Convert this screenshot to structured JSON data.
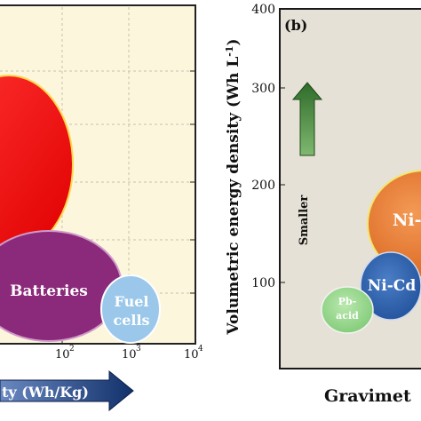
{
  "chart_data": [
    {
      "type": "scatter",
      "title": "",
      "xlabel": "ty (Wh/Kg)",
      "ylabel": "",
      "xscale": "log",
      "x_ticks": [
        "10²",
        "10³",
        "10⁴"
      ],
      "x_tick_values": [
        100,
        1000,
        10000
      ],
      "grid": true,
      "series": [
        {
          "name": "",
          "x": 5,
          "y": 0.72,
          "color": "#ff1a1a"
        },
        {
          "name": "Batteries",
          "x": 80,
          "y": 0.3,
          "color": "#8b2a7a"
        },
        {
          "name": "Fuel cells",
          "x": 700,
          "y": 0.24,
          "color": "#9bc8ea"
        }
      ]
    },
    {
      "type": "scatter",
      "panel_label": "(b)",
      "title": "",
      "xlabel": "Gravimet",
      "ylabel": "Volumetric energy density (Wh L⁻¹)",
      "y_ticks": [
        "100",
        "200",
        "300",
        "400"
      ],
      "ylim": [
        0,
        400
      ],
      "annotation": "Smaller",
      "series": [
        {
          "name": "Pb-acid",
          "x": 35,
          "y": 70,
          "color": "#90d48a"
        },
        {
          "name": "Ni-Cd",
          "x": 55,
          "y": 95,
          "color": "#2f62b0"
        },
        {
          "name": "Ni-",
          "x": 80,
          "y": 155,
          "color": "#e8742a"
        }
      ]
    }
  ],
  "left_panel": {
    "batteries_label": "Batteries",
    "fuel_label_1": "Fuel",
    "fuel_label_2": "cells",
    "tick_100": "10",
    "tick_100_exp": "2",
    "tick_1000": "10",
    "tick_1000_exp": "3",
    "tick_10000": "10",
    "tick_10000_exp": "4",
    "xlabel": "ty (Wh/Kg)"
  },
  "right_panel": {
    "panel_label": "(b)",
    "ylabel": "Volumetric energy density (Wh L",
    "ylabel_sup": "-1",
    "ylabel_end": ")",
    "y400": "400",
    "y300": "300",
    "y200": "200",
    "y100": "100",
    "smaller": "Smaller",
    "pb_1": "Pb-",
    "pb_2": "acid",
    "nicd": "Ni-Cd",
    "ni": "Ni-",
    "xlabel": "Gravimet"
  },
  "colors": {
    "plot_bg_left": "#fbf6dc",
    "plot_bg_right": "#e6e1d6",
    "arrow_blue": "#1c3d7a",
    "arrow_green": "#2f6b2a"
  }
}
